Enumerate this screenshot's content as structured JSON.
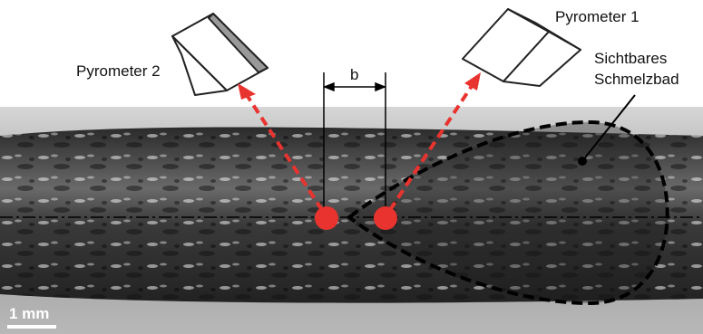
{
  "labels": {
    "pyrometer_1": "Pyrometer 1",
    "pyrometer_2": "Pyrometer 2",
    "dimension": "b",
    "melt_pool": [
      "Sichtbares",
      "Schmelzbad"
    ],
    "scale_bar": "1 mm"
  }
}
